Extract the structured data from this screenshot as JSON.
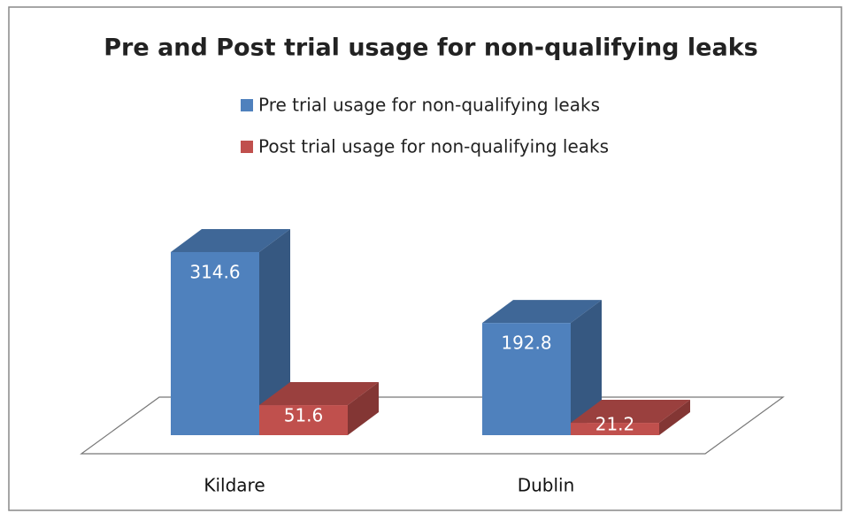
{
  "chart_data": {
    "type": "bar3d",
    "title": "Pre and Post trial usage for non-qualifying leaks",
    "categories": [
      "Kildare",
      "Dublin"
    ],
    "series": [
      {
        "name": "Pre trial usage for non-qualifying leaks",
        "color": "#4f81bd",
        "values": [
          314.6,
          192.8
        ]
      },
      {
        "name": "Post trial usage for non-qualifying leaks",
        "color": "#c0504d",
        "values": [
          51.6,
          21.2
        ]
      }
    ],
    "legend": "top"
  }
}
